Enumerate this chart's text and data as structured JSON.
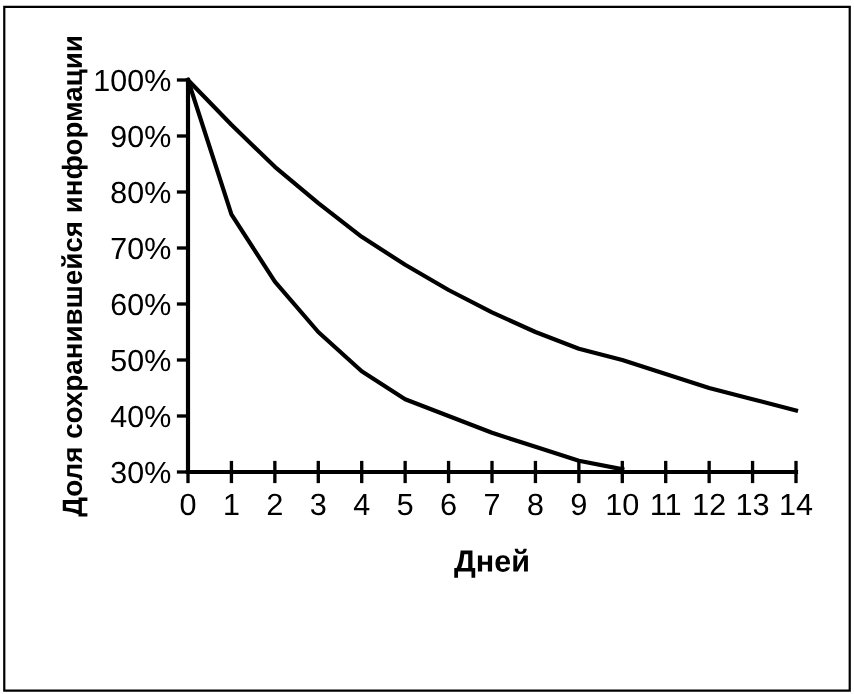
{
  "chart_data": {
    "type": "line",
    "xlabel": "Дней",
    "ylabel": "Доля сохранившейся информации",
    "xlim": [
      0,
      14
    ],
    "xticks": [
      0,
      1,
      2,
      3,
      4,
      5,
      6,
      7,
      8,
      9,
      10,
      11,
      12,
      13,
      14
    ],
    "ylim": [
      30,
      100
    ],
    "yticks": [
      {
        "value": 30,
        "label": "30%"
      },
      {
        "value": 40,
        "label": "40%"
      },
      {
        "value": 50,
        "label": "50%"
      },
      {
        "value": 60,
        "label": "60%"
      },
      {
        "value": 70,
        "label": "70%"
      },
      {
        "value": 80,
        "label": "80%"
      },
      {
        "value": 90,
        "label": "90%"
      },
      {
        "value": 100,
        "label": "100%"
      }
    ],
    "grid": false,
    "legend": false,
    "marker": "none",
    "line_style": "solid",
    "series": [
      {
        "color": "#000000",
        "x": [
          0,
          1,
          2,
          3,
          4,
          5,
          6,
          7,
          8,
          9,
          10,
          11,
          12,
          13,
          14
        ],
        "values": [
          100,
          92,
          84.5,
          78,
          72,
          67,
          62.5,
          58.5,
          55,
          52,
          50,
          47.5,
          45,
          43,
          41
        ]
      },
      {
        "color": "#000000",
        "x": [
          0,
          1,
          2,
          3,
          4,
          5,
          6,
          7,
          8,
          9,
          10
        ],
        "values": [
          100,
          76,
          64,
          55,
          48,
          43,
          40,
          37,
          34.5,
          32,
          30.5
        ]
      }
    ]
  }
}
